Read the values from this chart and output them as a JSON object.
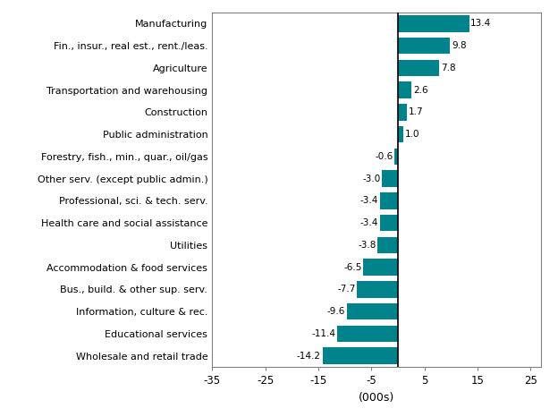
{
  "categories": [
    "Wholesale and retail trade",
    "Educational services",
    "Information, culture & rec.",
    "Bus., build. & other sup. serv.",
    "Accommodation & food services",
    "Utilities",
    "Health care and social assistance",
    "Professional, sci. & tech. serv.",
    "Other serv. (except public admin.)",
    "Forestry, fish., min., quar., oil/gas",
    "Public administration",
    "Construction",
    "Transportation and warehousing",
    "Agriculture",
    "Fin., insur., real est., rent./leas.",
    "Manufacturing"
  ],
  "values": [
    -14.2,
    -11.4,
    -9.6,
    -7.7,
    -6.5,
    -3.8,
    -3.4,
    -3.4,
    -3.0,
    -0.6,
    1.0,
    1.7,
    2.6,
    7.8,
    9.8,
    13.4
  ],
  "bar_color": "#00838a",
  "xlabel": "(000s)",
  "xlim": [
    -35,
    27
  ],
  "xticks": [
    -35,
    -25,
    -15,
    -5,
    5,
    15,
    25
  ],
  "background_color": "#ffffff",
  "label_color": "#000000",
  "figsize": [
    6.24,
    4.66
  ],
  "dpi": 100
}
